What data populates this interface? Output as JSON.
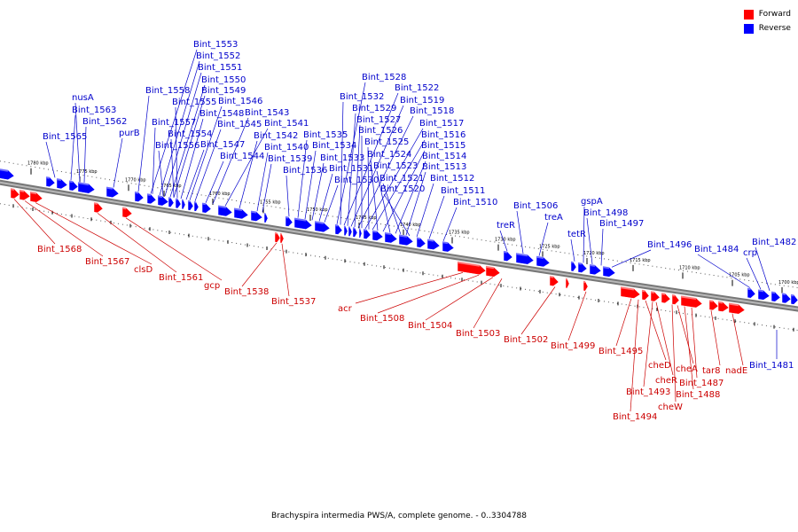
{
  "legend": {
    "forward_label": "Forward",
    "reverse_label": "Reverse",
    "forward_color": "#ff0000",
    "reverse_color": "#0000ff"
  },
  "caption": "Brachyspira intermedia PWS/A, complete genome. - 0..3304788",
  "ticks": [
    "1780 kbp",
    "1775 kbp",
    "1770 kbp",
    "1765 kbp",
    "1760 kbp",
    "1755 kbp",
    "1750 kbp",
    "1745 kbp",
    "1740 kbp",
    "1735 kbp",
    "1730 kbp",
    "1725 kbp",
    "1720 kbp",
    "1715 kbp",
    "1710 kbp",
    "1705 kbp",
    "1700 kbp"
  ],
  "genes_reverse": [
    "nusA",
    "Bint_1563",
    "Bint_1562",
    "Bint_1565",
    "purB",
    "Bint_1558",
    "Bint_1553",
    "Bint_1552",
    "Bint_1551",
    "Bint_1550",
    "Bint_1549",
    "Bint_1555",
    "Bint_1557",
    "Bint_1548",
    "Bint_1546",
    "Bint_1554",
    "Bint_1545",
    "Bint_1543",
    "Bint_1556",
    "Bint_1547",
    "Bint_1541",
    "Bint_1542",
    "Bint_1544",
    "Bint_1540",
    "Bint_1539",
    "Bint_1536",
    "Bint_1535",
    "Bint_1534",
    "Bint_1533",
    "Bint_1531",
    "Bint_1530",
    "Bint_1528",
    "Bint_1532",
    "Bint_1522",
    "Bint_1529",
    "Bint_1519",
    "Bint_1527",
    "Bint_1518",
    "Bint_1526",
    "Bint_1517",
    "Bint_1525",
    "Bint_1516",
    "Bint_1524",
    "Bint_1515",
    "Bint_1523",
    "Bint_1514",
    "Bint_1521",
    "Bint_1513",
    "Bint_1520",
    "Bint_1512",
    "Bint_1511",
    "Bint_1510",
    "treR",
    "Bint_1506",
    "treA",
    "tetR",
    "gspA",
    "Bint_1498",
    "Bint_1497",
    "Bint_1496",
    "Bint_1484",
    "crp",
    "Bint_1482",
    "Bint_1481"
  ],
  "genes_forward": [
    "Bint_1568",
    "Bint_1567",
    "clsD",
    "Bint_1561",
    "gcp",
    "Bint_1538",
    "Bint_1537",
    "acr",
    "Bint_1508",
    "Bint_1504",
    "Bint_1503",
    "Bint_1502",
    "Bint_1499",
    "Bint_1495",
    "cheD",
    "cheR",
    "Bint_1493",
    "Bint_1494",
    "cheW",
    "cheA",
    "Bint_1487",
    "Bint_1488",
    "tar8",
    "nadE"
  ]
}
